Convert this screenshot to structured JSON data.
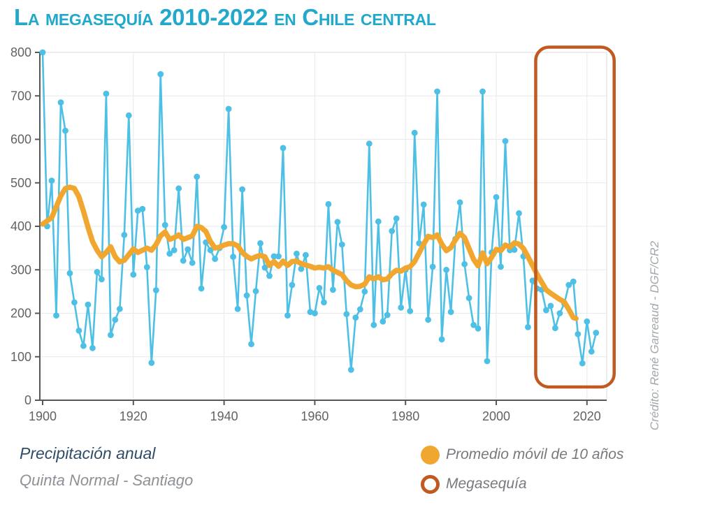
{
  "title": "La megasequía 2010-2022 en Chile central",
  "credit": "Crédito: René Garreaud - DGF/CR2",
  "footer": {
    "line1": "Precipitación anual",
    "line2": "Quinta Normal - Santiago"
  },
  "legend": [
    {
      "marker": "filled-dot",
      "label": "Promedio móvil de 10 años"
    },
    {
      "marker": "open-circle",
      "label": "Megasequía"
    }
  ],
  "colors": {
    "title": "#21a8ca",
    "annual_line": "#4fc0e5",
    "moving_avg": "#f0a62f",
    "megadrought_box": "#c05a20",
    "legend_text": "#77797d",
    "footer_primary": "#2f4d68",
    "footer_secondary": "#8b9196",
    "credit_text": "#a3a8ac",
    "axis": "#55585a",
    "tick_label": "#606365",
    "grid": "#e7e9eb",
    "plot_border": "#d9dbdd"
  },
  "chart_data": {
    "type": "line",
    "title": "La megasequía 2010-2022 en Chile central",
    "xlabel": "",
    "ylabel": "Precipitación anual (mm), Quinta Normal - Santiago",
    "xlim": [
      1899,
      2025
    ],
    "ylim": [
      0,
      800
    ],
    "xticks": [
      1900,
      1920,
      1940,
      1960,
      1980,
      2000,
      2020
    ],
    "yticks": [
      0,
      100,
      200,
      300,
      400,
      500,
      600,
      700,
      800
    ],
    "grid": true,
    "legend_position": "bottom",
    "series": [
      {
        "name": "Precipitación anual",
        "start_year": 1900,
        "values": [
          800,
          400,
          505,
          195,
          685,
          620,
          292,
          225,
          160,
          125,
          220,
          120,
          295,
          278,
          705,
          150,
          185,
          210,
          380,
          655,
          289,
          436,
          440,
          306,
          86,
          253,
          750,
          403,
          337,
          345,
          487,
          321,
          347,
          316,
          514,
          257,
          363,
          345,
          325,
          350,
          398,
          670,
          330,
          210,
          485,
          241,
          129,
          251,
          361,
          305,
          286,
          331,
          331,
          580,
          195,
          265,
          337,
          302,
          334,
          203,
          200,
          258,
          225,
          451,
          254,
          410,
          358,
          198,
          70,
          190,
          209,
          250,
          590,
          173,
          411,
          181,
          196,
          389,
          418,
          213,
          300,
          205,
          615,
          361,
          450,
          185,
          307,
          710,
          140,
          300,
          203,
          371,
          455,
          313,
          235,
          173,
          165,
          710,
          90,
          340,
          467,
          307,
          596,
          345,
          346,
          430,
          331,
          168,
          275,
          257,
          254,
          207,
          217,
          166,
          200,
          222,
          265,
          273,
          152,
          85,
          181,
          112,
          155
        ]
      },
      {
        "name": "Promedio móvil de 10 años",
        "points": [
          [
            1900,
            405
          ],
          [
            1902,
            420
          ],
          [
            1904,
            470
          ],
          [
            1905,
            487
          ],
          [
            1906,
            490
          ],
          [
            1907,
            487
          ],
          [
            1908,
            468
          ],
          [
            1909,
            435
          ],
          [
            1910,
            398
          ],
          [
            1911,
            365
          ],
          [
            1912,
            345
          ],
          [
            1913,
            330
          ],
          [
            1914,
            340
          ],
          [
            1915,
            353
          ],
          [
            1916,
            330
          ],
          [
            1917,
            318
          ],
          [
            1918,
            322
          ],
          [
            1919,
            335
          ],
          [
            1920,
            348
          ],
          [
            1921,
            340
          ],
          [
            1922,
            345
          ],
          [
            1923,
            350
          ],
          [
            1924,
            345
          ],
          [
            1925,
            358
          ],
          [
            1926,
            378
          ],
          [
            1927,
            387
          ],
          [
            1928,
            370
          ],
          [
            1929,
            374
          ],
          [
            1930,
            380
          ],
          [
            1931,
            370
          ],
          [
            1932,
            374
          ],
          [
            1933,
            378
          ],
          [
            1934,
            400
          ],
          [
            1935,
            397
          ],
          [
            1936,
            388
          ],
          [
            1937,
            365
          ],
          [
            1938,
            350
          ],
          [
            1939,
            352
          ],
          [
            1940,
            357
          ],
          [
            1941,
            360
          ],
          [
            1942,
            360
          ],
          [
            1943,
            355
          ],
          [
            1944,
            340
          ],
          [
            1945,
            331
          ],
          [
            1946,
            325
          ],
          [
            1947,
            330
          ],
          [
            1948,
            333
          ],
          [
            1949,
            330
          ],
          [
            1950,
            310
          ],
          [
            1951,
            319
          ],
          [
            1952,
            308
          ],
          [
            1953,
            320
          ],
          [
            1954,
            310
          ],
          [
            1955,
            319
          ],
          [
            1956,
            320
          ],
          [
            1957,
            314
          ],
          [
            1958,
            311
          ],
          [
            1959,
            308
          ],
          [
            1960,
            304
          ],
          [
            1961,
            306
          ],
          [
            1962,
            304
          ],
          [
            1963,
            307
          ],
          [
            1964,
            299
          ],
          [
            1965,
            294
          ],
          [
            1966,
            289
          ],
          [
            1967,
            275
          ],
          [
            1968,
            265
          ],
          [
            1969,
            261
          ],
          [
            1970,
            262
          ],
          [
            1971,
            267
          ],
          [
            1972,
            284
          ],
          [
            1973,
            279
          ],
          [
            1974,
            284
          ],
          [
            1975,
            277
          ],
          [
            1976,
            279
          ],
          [
            1977,
            291
          ],
          [
            1978,
            299
          ],
          [
            1979,
            297
          ],
          [
            1980,
            304
          ],
          [
            1981,
            307
          ],
          [
            1982,
            319
          ],
          [
            1983,
            339
          ],
          [
            1984,
            359
          ],
          [
            1985,
            377
          ],
          [
            1986,
            374
          ],
          [
            1987,
            380
          ],
          [
            1988,
            359
          ],
          [
            1989,
            344
          ],
          [
            1990,
            351
          ],
          [
            1991,
            369
          ],
          [
            1992,
            384
          ],
          [
            1993,
            374
          ],
          [
            1994,
            349
          ],
          [
            1995,
            324
          ],
          [
            1996,
            309
          ],
          [
            1997,
            339
          ],
          [
            1998,
            314
          ],
          [
            1999,
            329
          ],
          [
            2000,
            347
          ],
          [
            2001,
            344
          ],
          [
            2002,
            357
          ],
          [
            2003,
            352
          ],
          [
            2004,
            362
          ],
          [
            2005,
            359
          ],
          [
            2006,
            349
          ],
          [
            2007,
            330
          ],
          [
            2008,
            310
          ],
          [
            2009,
            290
          ],
          [
            2010,
            272
          ],
          [
            2011,
            254
          ],
          [
            2012,
            246
          ],
          [
            2013,
            239
          ],
          [
            2014,
            232
          ],
          [
            2015,
            226
          ],
          [
            2016,
            209
          ],
          [
            2017,
            190
          ],
          [
            2017.6,
            188
          ]
        ]
      }
    ],
    "annotation_box": {
      "label": "Megasequía",
      "from_year": 2008.7,
      "to_year": 2026.0
    }
  }
}
